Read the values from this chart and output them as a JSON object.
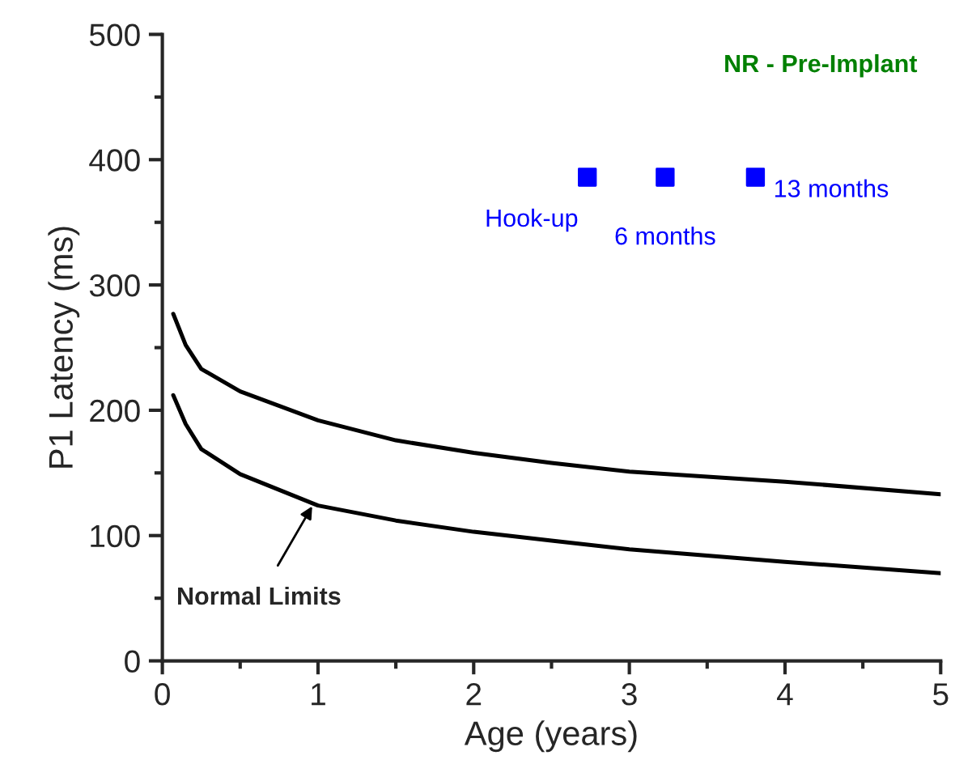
{
  "chart_data": {
    "type": "line",
    "title": "NR - Pre-Implant",
    "xlabel": "Age (years)",
    "ylabel": "P1 Latency (ms)",
    "xlim": [
      0,
      5
    ],
    "ylim": [
      0,
      500
    ],
    "xticks": [
      0,
      {
        "value": 0.5,
        "label": null
      },
      1,
      {
        "value": 1.5,
        "label": null
      },
      2,
      {
        "value": 2.5,
        "label": null
      },
      3,
      {
        "value": 3.5,
        "label": null
      },
      4,
      {
        "value": 4.5,
        "label": null
      },
      5
    ],
    "yticks": [
      0,
      {
        "value": 50,
        "label": null
      },
      100,
      {
        "value": 150,
        "label": null
      },
      200,
      {
        "value": 250,
        "label": null
      },
      300,
      {
        "value": 350,
        "label": null
      },
      400,
      {
        "value": 450,
        "label": null
      },
      500
    ],
    "grid": false,
    "legend": false,
    "series": [
      {
        "color": "#000000",
        "x": [
          0.07,
          0.15,
          0.25,
          0.5,
          1,
          1.5,
          2,
          2.5,
          3,
          4,
          5
        ],
        "values": [
          277,
          252,
          233,
          215,
          192,
          176,
          166,
          158,
          151,
          143,
          133
        ]
      },
      {
        "color": "#000000",
        "x": [
          0.07,
          0.15,
          0.25,
          0.5,
          1,
          1.5,
          2,
          2.5,
          3,
          4,
          5
        ],
        "values": [
          212,
          189,
          169,
          149,
          124,
          112,
          103,
          96,
          89,
          79,
          70
        ]
      },
      {
        "type": "scatter",
        "marker": "square",
        "color": "#0000ff",
        "x": [
          2.73,
          3.23,
          3.81
        ],
        "values": [
          386,
          386,
          386
        ]
      }
    ],
    "annotations": [
      {
        "text": "Normal Limits",
        "x": 0.97,
        "y": 125
      },
      {
        "text": "Hook-up",
        "x": 2.73,
        "y": 386
      },
      {
        "text": "6 months",
        "x": 3.23,
        "y": 386
      },
      {
        "text": "13 months",
        "x": 3.81,
        "y": 386
      }
    ]
  }
}
